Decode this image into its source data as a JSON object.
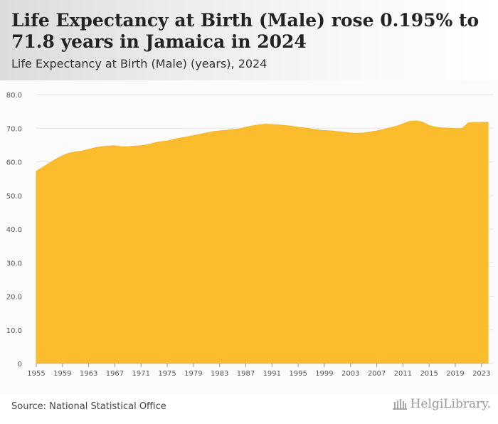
{
  "header": {
    "title": "Life Expectancy at Birth (Male) rose 0.195% to 71.8 years in Jamaica in 2024",
    "subtitle": "Life Expectancy at Birth (Male) (years), 2024"
  },
  "footer": {
    "source": "Source: National Statistical Office",
    "logo": "HelgiLibrary."
  },
  "colors": {
    "area_fill": "#fbbc2e",
    "area_stroke": "#f5b321",
    "grid": "#e3e3e3",
    "axis_text": "#555555"
  },
  "chart_data": {
    "type": "area",
    "title": "Life Expectancy at Birth (Male) rose 0.195% to 71.8 years in Jamaica in 2024",
    "subtitle": "Life Expectancy at Birth (Male) (years), 2024",
    "xlabel": "",
    "ylabel": "",
    "ylim": [
      0,
      80
    ],
    "xlim": [
      1955,
      2024
    ],
    "y_ticks": [
      "0",
      "10.0",
      "20.0",
      "30.0",
      "40.0",
      "50.0",
      "60.0",
      "70.0",
      "80.0"
    ],
    "x_ticks": [
      1955,
      1959,
      1963,
      1967,
      1971,
      1975,
      1979,
      1983,
      1987,
      1991,
      1995,
      1999,
      2003,
      2007,
      2011,
      2015,
      2019,
      2023
    ],
    "grid": true,
    "legend": "none",
    "x": [
      1955,
      1956,
      1957,
      1958,
      1959,
      1960,
      1961,
      1962,
      1963,
      1964,
      1965,
      1966,
      1967,
      1968,
      1969,
      1970,
      1971,
      1972,
      1973,
      1974,
      1975,
      1976,
      1977,
      1978,
      1979,
      1980,
      1981,
      1982,
      1983,
      1984,
      1985,
      1986,
      1987,
      1988,
      1989,
      1990,
      1991,
      1992,
      1993,
      1994,
      1995,
      1996,
      1997,
      1998,
      1999,
      2000,
      2001,
      2002,
      2003,
      2004,
      2005,
      2006,
      2007,
      2008,
      2009,
      2010,
      2011,
      2012,
      2013,
      2014,
      2015,
      2016,
      2017,
      2018,
      2019,
      2020,
      2021,
      2022,
      2023,
      2024
    ],
    "values": [
      57.2,
      58.4,
      59.6,
      60.8,
      61.8,
      62.6,
      63.0,
      63.2,
      63.7,
      64.2,
      64.5,
      64.7,
      64.8,
      64.5,
      64.5,
      64.7,
      64.8,
      65.1,
      65.6,
      66.0,
      66.2,
      66.7,
      67.1,
      67.4,
      67.8,
      68.2,
      68.6,
      69.0,
      69.2,
      69.4,
      69.6,
      69.8,
      70.3,
      70.7,
      71.0,
      71.2,
      71.1,
      71.0,
      70.8,
      70.6,
      70.3,
      70.1,
      69.8,
      69.5,
      69.3,
      69.2,
      69.0,
      68.8,
      68.6,
      68.5,
      68.6,
      68.9,
      69.2,
      69.6,
      70.1,
      70.6,
      71.3,
      72.0,
      72.2,
      71.8,
      70.8,
      70.3,
      70.1,
      70.0,
      69.9,
      69.9,
      71.6,
      71.7,
      71.7,
      71.8
    ]
  }
}
